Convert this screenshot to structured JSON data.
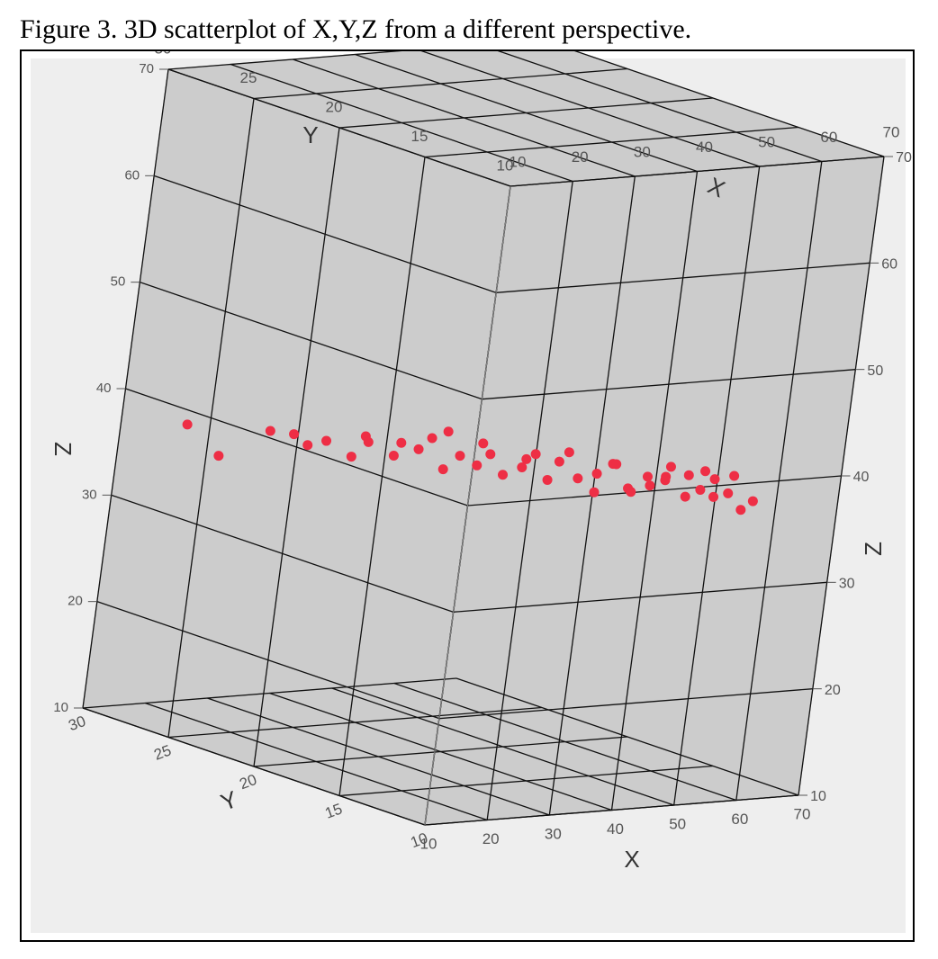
{
  "caption": "Figure 3. 3D scatterplot of X,Y,Z from a different perspective.",
  "chart_data": {
    "type": "scatter",
    "title": "",
    "axes": {
      "x": {
        "label": "X",
        "range": [
          10,
          70
        ],
        "ticks": [
          "10",
          "20",
          "30",
          "40",
          "50",
          "60",
          "70"
        ]
      },
      "y": {
        "label": "Y",
        "range": [
          10,
          30
        ],
        "ticks": [
          "10",
          "15",
          "20",
          "25",
          "30"
        ]
      },
      "z": {
        "label": "Z",
        "range": [
          10,
          70
        ],
        "ticks": [
          "10",
          "20",
          "30",
          "40",
          "50",
          "60",
          "70"
        ]
      }
    },
    "grid": true,
    "marker_color": "#ee2e45",
    "box_color": "#cccccc",
    "series": [
      {
        "points": [
          {
            "x": 13.5,
            "y": 25.5,
            "z": 36.0
          },
          {
            "x": 15.0,
            "y": 28.0,
            "z": 37.5
          },
          {
            "x": 17.0,
            "y": 24.0,
            "z": 39.0
          },
          {
            "x": 18.0,
            "y": 23.0,
            "z": 39.2
          },
          {
            "x": 19.0,
            "y": 22.5,
            "z": 38.4
          },
          {
            "x": 20.5,
            "y": 22.0,
            "z": 39.0
          },
          {
            "x": 21.0,
            "y": 20.0,
            "z": 40.5
          },
          {
            "x": 22.0,
            "y": 21.0,
            "z": 38.0
          },
          {
            "x": 23.0,
            "y": 20.5,
            "z": 39.6
          },
          {
            "x": 24.0,
            "y": 19.0,
            "z": 40.3
          },
          {
            "x": 24.5,
            "y": 19.5,
            "z": 38.8
          },
          {
            "x": 25.5,
            "y": 18.5,
            "z": 39.9
          },
          {
            "x": 26.0,
            "y": 18.0,
            "z": 41.2
          },
          {
            "x": 27.0,
            "y": 17.5,
            "z": 38.5
          },
          {
            "x": 28.0,
            "y": 17.0,
            "z": 40.0
          },
          {
            "x": 28.5,
            "y": 18.0,
            "z": 41.7
          },
          {
            "x": 29.5,
            "y": 16.5,
            "z": 39.3
          },
          {
            "x": 30.0,
            "y": 16.0,
            "z": 40.6
          },
          {
            "x": 31.0,
            "y": 15.5,
            "z": 38.9
          },
          {
            "x": 31.5,
            "y": 17.0,
            "z": 41.0
          },
          {
            "x": 32.5,
            "y": 15.0,
            "z": 39.8
          },
          {
            "x": 33.0,
            "y": 14.5,
            "z": 41.3
          },
          {
            "x": 34.0,
            "y": 14.0,
            "z": 39.1
          },
          {
            "x": 34.5,
            "y": 15.5,
            "z": 40.2
          },
          {
            "x": 35.5,
            "y": 13.5,
            "z": 41.9
          },
          {
            "x": 36.0,
            "y": 13.0,
            "z": 39.7
          },
          {
            "x": 37.0,
            "y": 14.5,
            "z": 40.4
          },
          {
            "x": 37.5,
            "y": 12.5,
            "z": 38.6
          },
          {
            "x": 38.5,
            "y": 12.0,
            "z": 41.5
          },
          {
            "x": 39.0,
            "y": 13.0,
            "z": 40.0
          },
          {
            "x": 40.0,
            "y": 11.5,
            "z": 39.4
          },
          {
            "x": 40.5,
            "y": 12.5,
            "z": 41.1
          },
          {
            "x": 41.5,
            "y": 11.0,
            "z": 40.7
          },
          {
            "x": 42.0,
            "y": 12.0,
            "z": 38.7
          },
          {
            "x": 43.0,
            "y": 10.5,
            "z": 40.9
          },
          {
            "x": 43.5,
            "y": 11.5,
            "z": 39.5
          },
          {
            "x": 44.5,
            "y": 10.8,
            "z": 41.6
          },
          {
            "x": 45.0,
            "y": 11.2,
            "z": 40.1
          },
          {
            "x": 46.0,
            "y": 10.3,
            "z": 39.0
          },
          {
            "x": 47.0,
            "y": 10.6,
            "z": 40.8
          },
          {
            "x": 48.0,
            "y": 10.2,
            "z": 39.6
          },
          {
            "x": 49.0,
            "y": 10.4,
            "z": 41.2
          },
          {
            "x": 50.0,
            "y": 10.1,
            "z": 38.9
          },
          {
            "x": 51.0,
            "y": 10.5,
            "z": 40.3
          },
          {
            "x": 52.0,
            "y": 10.0,
            "z": 39.2
          },
          {
            "x": 53.5,
            "y": 10.3,
            "z": 40.6
          },
          {
            "x": 55.0,
            "y": 10.2,
            "z": 37.4
          },
          {
            "x": 56.5,
            "y": 10.1,
            "z": 38.2
          }
        ]
      }
    ]
  }
}
